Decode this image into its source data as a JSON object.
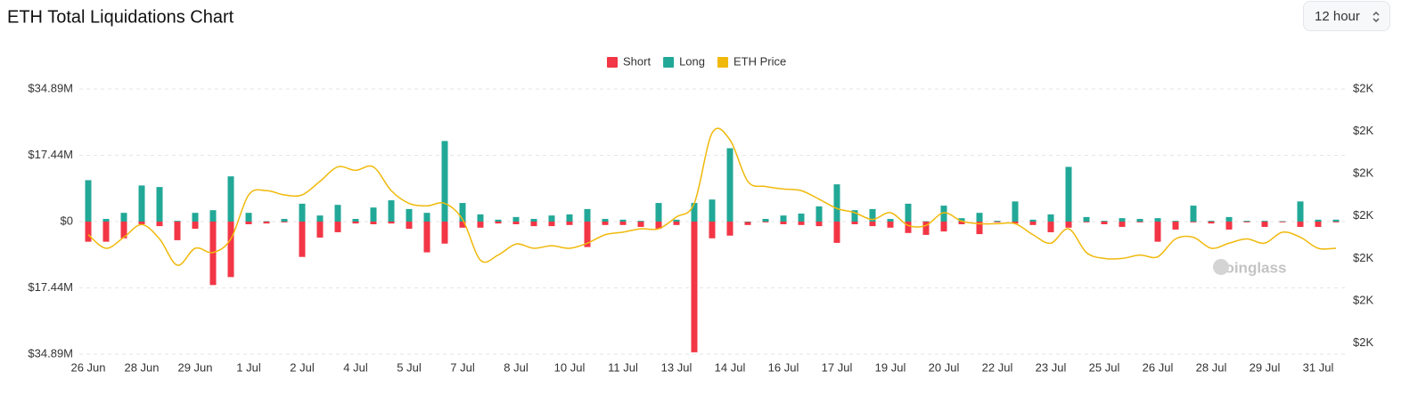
{
  "interval": "12 hour",
  "chart_data": {
    "type": "bar",
    "title": "ETH Total Liquidations Chart",
    "watermark": "coinglass",
    "categories": [
      "26 Jun",
      null,
      null,
      "28 Jun",
      null,
      null,
      "29 Jun",
      null,
      null,
      "1 Jul",
      null,
      null,
      "2 Jul",
      null,
      null,
      "4 Jul",
      null,
      null,
      "5 Jul",
      null,
      null,
      "7 Jul",
      null,
      null,
      "8 Jul",
      null,
      null,
      "10 Jul",
      null,
      null,
      "11 Jul",
      null,
      null,
      "13 Jul",
      null,
      null,
      "14 Jul",
      null,
      null,
      "16 Jul",
      null,
      null,
      "17 Jul",
      null,
      null,
      "19 Jul",
      null,
      null,
      "20 Jul",
      null,
      null,
      "22 Jul",
      null,
      null,
      "23 Jul",
      null,
      null,
      "25 Jul",
      null,
      null,
      "26 Jul",
      null,
      null,
      "28 Jul",
      null,
      null,
      "29 Jul",
      null,
      null,
      "31 Jul",
      null
    ],
    "series": [
      {
        "name": "Short",
        "color": "#f23645",
        "values": [
          -5.3,
          -5.3,
          -4.4,
          -0.7,
          -1.2,
          -4.9,
          -1.9,
          -16.7,
          -14.6,
          -0.7,
          -0.5,
          -0.2,
          -9.3,
          -4.2,
          -2.8,
          -0.5,
          -0.7,
          -0.5,
          -1.9,
          -8.1,
          -5.8,
          -1.6,
          -1.6,
          -0.5,
          -0.7,
          -1.2,
          -1.2,
          -0.9,
          -6.7,
          -0.9,
          -0.9,
          -1.4,
          -1.9,
          -0.9,
          -34.4,
          -4.4,
          -3.7,
          -0.9,
          -0.2,
          -0.7,
          -0.9,
          -1.2,
          -5.6,
          -0.7,
          -1.2,
          -1.6,
          -3.0,
          -3.5,
          -2.6,
          -0.7,
          -3.3,
          -0.2,
          -0.5,
          -0.9,
          -2.8,
          -1.6,
          -0.2,
          -0.7,
          -1.4,
          -0.2,
          -5.3,
          -2.1,
          -0.2,
          -0.5,
          -2.1,
          -0.2,
          -1.4,
          -0.2,
          -1.4,
          -1.4,
          -0.2
        ]
      },
      {
        "name": "Long",
        "color": "#22a897",
        "values": [
          10.9,
          0.7,
          2.3,
          9.5,
          9.1,
          0.2,
          2.3,
          3.0,
          11.9,
          2.3,
          0.1,
          0.7,
          4.7,
          1.6,
          4.4,
          0.7,
          3.7,
          5.6,
          3.3,
          2.3,
          21.2,
          4.9,
          1.9,
          0.5,
          1.2,
          0.7,
          1.6,
          1.9,
          3.3,
          0.7,
          0.5,
          0.2,
          4.9,
          0.5,
          4.9,
          5.8,
          19.3,
          0.0,
          0.7,
          1.6,
          2.1,
          4.0,
          9.8,
          3.0,
          3.3,
          0.7,
          4.7,
          0.1,
          4.2,
          0.9,
          2.3,
          0.2,
          5.3,
          0.5,
          1.9,
          14.4,
          1.2,
          0.2,
          0.9,
          0.7,
          0.9,
          0.2,
          4.2,
          0.2,
          1.2,
          0.2,
          0.2,
          0.1,
          5.3,
          0.5,
          0.5
        ]
      },
      {
        "name": "ETH Price",
        "color": "#f0b90b",
        "axis": "y2",
        "type": "line",
        "values": [
          1878,
          1862,
          1875,
          1890,
          1873,
          1842,
          1862,
          1857,
          1873,
          1925,
          1930,
          1925,
          1925,
          1941,
          1958,
          1954,
          1958,
          1930,
          1915,
          1912,
          1915,
          1896,
          1848,
          1854,
          1867,
          1862,
          1865,
          1862,
          1868,
          1878,
          1881,
          1885,
          1885,
          1899,
          1915,
          1998,
          1990,
          1941,
          1935,
          1932,
          1930,
          1920,
          1909,
          1904,
          1896,
          1904,
          1889,
          1889,
          1904,
          1894,
          1891,
          1891,
          1891,
          1878,
          1868,
          1885,
          1857,
          1850,
          1850,
          1854,
          1852,
          1873,
          1875,
          1862,
          1868,
          1873,
          1868,
          1881,
          1875,
          1862,
          1862
        ]
      }
    ],
    "ylim": [
      -34.89,
      34.89
    ],
    "yticks": [
      {
        "value": 34.89,
        "label": "$34.89M"
      },
      {
        "value": 17.44,
        "label": "$17.44M"
      },
      {
        "value": 0,
        "label": "$0"
      },
      {
        "value": -17.44,
        "label": "$17.44M"
      },
      {
        "value": -34.89,
        "label": "$34.89M"
      }
    ],
    "y2lim": [
      1737,
      2050
    ],
    "y2ticks": [
      {
        "value": 2050,
        "label": "$2K"
      },
      {
        "value": 2000,
        "label": "$2K"
      },
      {
        "value": 1950,
        "label": "$2K"
      },
      {
        "value": 1900,
        "label": "$2K"
      },
      {
        "value": 1850,
        "label": "$2K"
      },
      {
        "value": 1800,
        "label": "$2K"
      },
      {
        "value": 1750,
        "label": "$2K"
      }
    ],
    "grid": true,
    "legend": "top"
  }
}
